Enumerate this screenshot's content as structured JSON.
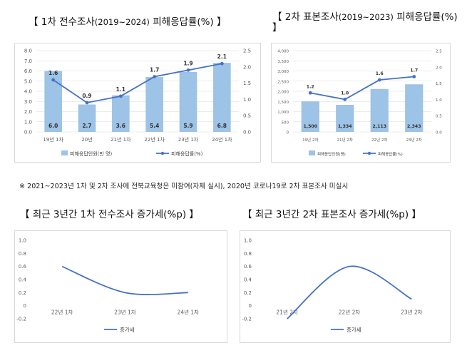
{
  "titles": {
    "c1_main": "【 1차 전수조사",
    "c1_small": "(2019~2024)",
    "c1_tail": " 피해응답률(%) 】",
    "c2_main": "【 2차 표본조사",
    "c2_small": "(2019~2023)",
    "c2_tail": " 피해응답률(%) 】",
    "c3": "【 최근 3년간 1차 전수조사 증가세(%p) 】",
    "c4": "【 최근 3년간 2차 표본조사 증가세(%p) 】"
  },
  "note": "※ 2021~2023년 1차 및 2차 조사에 전북교육청은 미참여(자체 실시), 2020년 코로나19로 2차 표본조사 미실시",
  "colors": {
    "bar": "#9dc3e6",
    "line": "#4472c4",
    "grid": "#d9d9d9",
    "axis_text": "#595959"
  },
  "chart_data": [
    {
      "type": "bar",
      "categories": [
        "19년 1차",
        "20년",
        "21년 1차",
        "22년 1차",
        "23년 1차",
        "24년 1차"
      ],
      "series": [
        {
          "name": "피해응답인원(만 명)",
          "type": "bar",
          "values": [
            6.0,
            2.7,
            3.6,
            5.4,
            5.9,
            6.8
          ],
          "labels": [
            "6.0",
            "2.7",
            "3.6",
            "5.4",
            "5.9",
            "6.8"
          ]
        },
        {
          "name": "피해응답률(%)",
          "type": "line",
          "values": [
            1.6,
            0.9,
            1.1,
            1.7,
            1.9,
            2.1
          ],
          "labels": [
            "1.6",
            "0.9",
            "1.1",
            "1.7",
            "1.9",
            "2.1"
          ]
        }
      ],
      "y_ticks": [
        "0.0",
        "1.0",
        "2.0",
        "3.0",
        "4.0",
        "5.0",
        "6.0",
        "7.0",
        "8.0"
      ],
      "y2_ticks": [
        "0.0",
        "0.5",
        "1.0",
        "1.5",
        "2.0",
        "2.5"
      ],
      "ylim": [
        0,
        8
      ],
      "y2lim": [
        0,
        2.5
      ],
      "legend": "bottom",
      "grid": true
    },
    {
      "type": "bar",
      "categories": [
        "19년 2차",
        "21년 2차",
        "22년 2차",
        "23년 2차"
      ],
      "series": [
        {
          "name": "피해응답인원(명)",
          "type": "bar",
          "values": [
            1500,
            1334,
            2113,
            2343
          ],
          "labels": [
            "1,500",
            "1,334",
            "2,113",
            "2,343"
          ]
        },
        {
          "name": "피해응답률(%)",
          "type": "line",
          "values": [
            1.2,
            1.0,
            1.6,
            1.7
          ],
          "labels": [
            "1.2",
            "1.0",
            "1.6",
            "1.7"
          ]
        }
      ],
      "y_ticks": [
        "0",
        "500",
        "1,000",
        "1,500",
        "2,000",
        "2,500",
        "3,000",
        "3,500",
        "4,000"
      ],
      "y2_ticks": [
        "0.0",
        "0.5",
        "1.0",
        "1.5",
        "2.0",
        "2.5"
      ],
      "ylim": [
        0,
        4000
      ],
      "y2lim": [
        0,
        2.5
      ],
      "legend": "bottom",
      "grid": true
    },
    {
      "type": "line",
      "categories": [
        "22년 1차",
        "23년 1차",
        "24년 1차"
      ],
      "series": [
        {
          "name": "증가세",
          "values": [
            0.6,
            0.2,
            0.2
          ]
        }
      ],
      "y_ticks": [
        "-0.2",
        "0",
        "0.2",
        "0.4",
        "0.6",
        "0.8",
        "1.0"
      ],
      "ylim": [
        -0.2,
        1.0
      ],
      "legend": "bottom",
      "grid": false
    },
    {
      "type": "line",
      "categories": [
        "21년 2차",
        "22년 2차",
        "23년 2차"
      ],
      "series": [
        {
          "name": "증가세",
          "values": [
            -0.2,
            0.6,
            0.1
          ]
        }
      ],
      "y_ticks": [
        "-0.2",
        "0",
        "0.2",
        "0.4",
        "0.6",
        "0.8",
        "1.0"
      ],
      "ylim": [
        -0.2,
        1.0
      ],
      "legend": "bottom",
      "grid": false
    }
  ]
}
